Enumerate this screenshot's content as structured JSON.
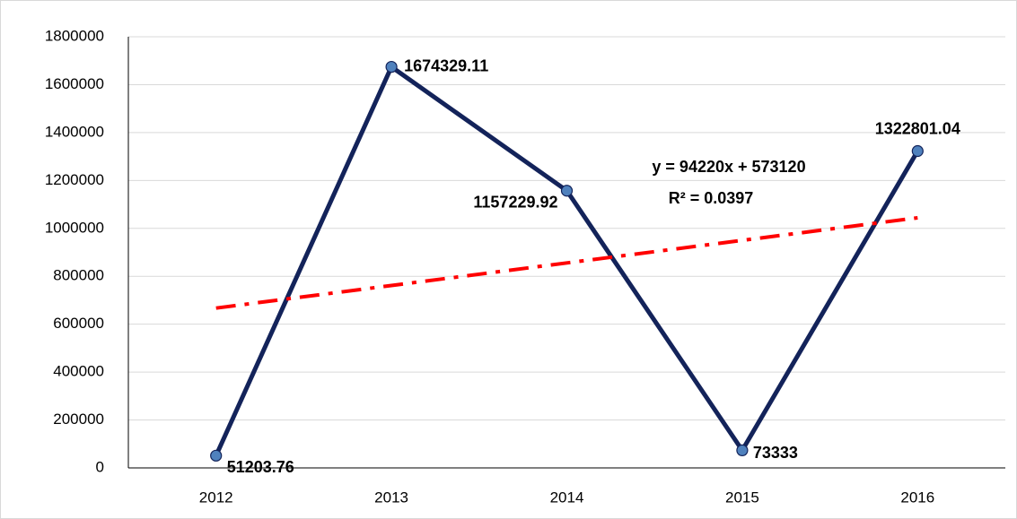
{
  "chart_data": {
    "type": "line",
    "categories": [
      "2012",
      "2013",
      "2014",
      "2015",
      "2016"
    ],
    "series": [
      {
        "color": "#13235a",
        "marker_color": "#4f81bd",
        "values": [
          51203.76,
          1674329.11,
          1157229.92,
          73333,
          1322801.04
        ]
      }
    ],
    "trendline": {
      "slope": 94220,
      "intercept": 573120,
      "color": "#ff0000",
      "equation": "y = 94220x + 573120",
      "r_squared": "R² = 0.0397"
    },
    "ylim": [
      0,
      1800000
    ],
    "yticks": [
      0,
      200000,
      400000,
      600000,
      800000,
      1000000,
      1200000,
      1400000,
      1600000,
      1800000
    ],
    "grid": true
  }
}
